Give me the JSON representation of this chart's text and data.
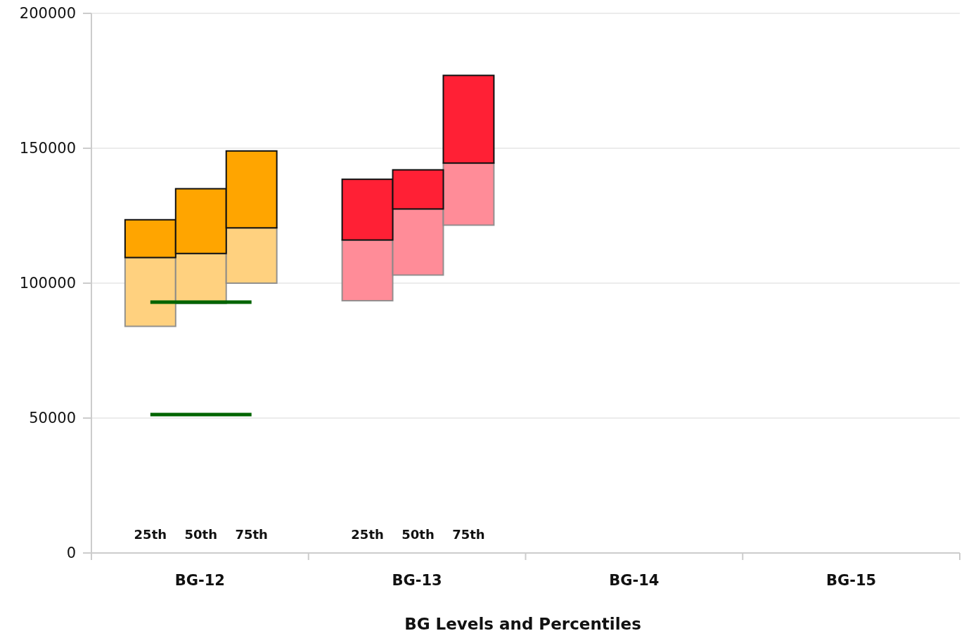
{
  "chart_data": {
    "type": "bar",
    "xlabel": "BG Levels and Percentiles",
    "categories": [
      "25th",
      "50th",
      "75th",
      "25th",
      "50th",
      "75th",
      null,
      null,
      null,
      null,
      null,
      null
    ],
    "annotations": [
      "BG-12",
      "BG-13",
      "BG-14",
      "BG-15"
    ],
    "series": [
      {
        "base": [
          84000,
          92500,
          100000,
          93500,
          103000,
          121500,
          null,
          null,
          null,
          null,
          null,
          null
        ],
        "colors": [
          "#ffd17f",
          "#ffd17f",
          "#ffd17f",
          "#ff8c98",
          "#ff8c98",
          "#ff8c98",
          null,
          null,
          null,
          null,
          null,
          null
        ],
        "values": [
          25500,
          18500,
          20500,
          22500,
          24500,
          23000,
          null,
          null,
          null,
          null,
          null,
          null
        ]
      },
      {
        "base": [
          109500,
          111000,
          120500,
          116000,
          127500,
          144500,
          null,
          null,
          null,
          null,
          null,
          null
        ],
        "colors": [
          "#ffa500",
          "#ffa500",
          "#ffa500",
          "#ff2035",
          "#ff2035",
          "#ff2035",
          null,
          null,
          null,
          null,
          null,
          null
        ],
        "values": [
          14000,
          24000,
          28500,
          22500,
          14500,
          32500,
          null,
          null,
          null,
          null,
          null,
          null
        ]
      },
      {
        "type": "line",
        "color": "#006400",
        "values": [
          93000,
          93000,
          93000,
          null,
          null,
          null,
          null,
          null,
          null,
          null,
          null,
          null
        ]
      },
      {
        "type": "line",
        "color": "#006400",
        "values": [
          51300,
          51300,
          51300,
          null,
          null,
          null,
          null,
          null,
          null,
          null,
          null,
          null
        ]
      }
    ],
    "ylim": [
      0,
      200000
    ],
    "yticks": [
      0,
      50000,
      100000,
      150000,
      200000
    ],
    "grid": "y"
  }
}
